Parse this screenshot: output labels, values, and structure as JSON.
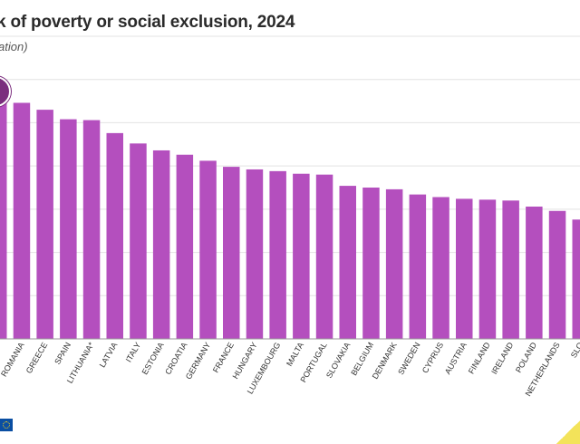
{
  "header": {
    "title": "k of poverty or social exclusion, 2024",
    "subtitle": "ation)"
  },
  "colors": {
    "bar": "#b44fbe",
    "badge": "#7b2d7e",
    "eu_flag": "#0a4ea2"
  },
  "icons": {
    "badge": "circle-badge-icon",
    "logo": "eu-flag-icon"
  },
  "chart_data": {
    "type": "bar",
    "categories": [
      "",
      "ROMANIA",
      "GREECE",
      "SPAIN",
      "LITHUANIA*",
      "LATVIA",
      "ITALY",
      "ESTONIA",
      "CROATIA",
      "GERMANY",
      "FRANCE",
      "HUNGARY",
      "LUXEMBOURG",
      "MALTA",
      "PORTUGAL",
      "SLOVAKIA",
      "BELGIUM",
      "DENMARK",
      "SWEDEN",
      "CYPRUS",
      "AUSTRIA",
      "FINLAND",
      "IRELAND",
      "POLAND",
      "NETHERLANDS",
      "SLO"
    ],
    "values": [
      29.5,
      27.3,
      26.5,
      25.4,
      25.3,
      23.8,
      22.6,
      21.8,
      21.3,
      20.6,
      19.9,
      19.6,
      19.4,
      19.1,
      19.0,
      17.7,
      17.5,
      17.3,
      16.7,
      16.4,
      16.2,
      16.1,
      16.0,
      15.3,
      14.8,
      13.8
    ],
    "ylim": [
      0,
      35
    ],
    "grid": true,
    "legend": "none"
  }
}
